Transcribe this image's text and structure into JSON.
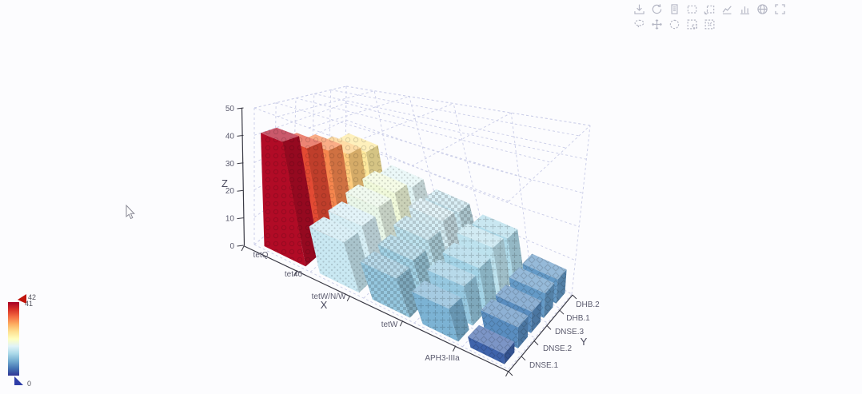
{
  "toolbar": {
    "icon_color": "#b4b6c4",
    "row1": [
      "download",
      "restore",
      "data-view",
      "zoom-window",
      "reset-view",
      "line-chart",
      "bar-chart",
      "globe",
      "fullscreen"
    ],
    "row2": [
      "lasso-select",
      "pan",
      "circle-select",
      "keep-selection",
      "clear-selection"
    ]
  },
  "chart_data": {
    "type": "bar",
    "projection": "3d",
    "title": "",
    "x_title": "X",
    "y_title": "Y",
    "z_title": "Z",
    "x_categories": [
      "tetQ",
      "tet40",
      "tetW/N/W",
      "tetW",
      "APH3-IIIa"
    ],
    "y_categories": [
      "DNSE.1",
      "DNSE.2",
      "DNSE.3",
      "DHB.1",
      "DHB.2"
    ],
    "zlim": [
      0,
      50
    ],
    "z_ticks": [
      0,
      10,
      20,
      30,
      40,
      50
    ],
    "grid": true,
    "legend_position": "none",
    "series": [
      {
        "name": "tetQ",
        "values": [
          41,
          36,
          32,
          27,
          24
        ]
      },
      {
        "name": "tet40",
        "values": [
          15,
          16,
          18,
          19,
          17
        ]
      },
      {
        "name": "tetW/N/W",
        "values": [
          11,
          12,
          14,
          16,
          15
        ]
      },
      {
        "name": "tetW",
        "values": [
          9,
          11,
          12,
          14,
          13
        ]
      },
      {
        "name": "APH3-IIIa",
        "values": [
          3,
          6,
          6,
          7,
          7
        ]
      }
    ],
    "colormap": {
      "min": 0,
      "max": 42,
      "stops": [
        [
          0.0,
          "#313695"
        ],
        [
          0.1,
          "#4575b4"
        ],
        [
          0.2,
          "#74add1"
        ],
        [
          0.3,
          "#abd9e9"
        ],
        [
          0.4,
          "#e0f3f8"
        ],
        [
          0.5,
          "#ffffbf"
        ],
        [
          0.6,
          "#fee090"
        ],
        [
          0.7,
          "#fdae61"
        ],
        [
          0.8,
          "#f46d43"
        ],
        [
          0.9,
          "#d73027"
        ],
        [
          1.0,
          "#a50026"
        ]
      ]
    }
  },
  "colorbar": {
    "max_label": "42",
    "handle_label": "41",
    "min_label": "0",
    "handle_top_color": "#c0150c",
    "handle_bottom_color": "#2f3ea8"
  }
}
